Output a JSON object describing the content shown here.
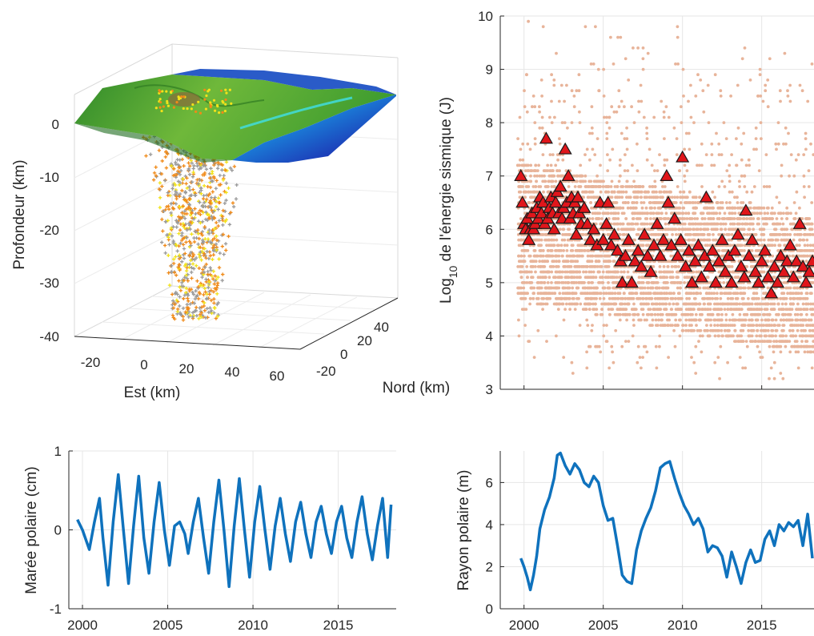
{
  "figure": {
    "panel_3d": {
      "zlabel": "Profondeur (km)",
      "xlabel": "Est (km)",
      "ylabel": "Nord (km)",
      "z_ticks": [
        "0",
        "-10",
        "-20",
        "-30",
        "-40"
      ],
      "x_ticks": [
        "-20",
        "0",
        "20",
        "40",
        "60"
      ],
      "y_ticks": [
        "-20",
        "0",
        "20",
        "40"
      ]
    },
    "colors": {
      "energy_points": "#e8b49a",
      "triangles_fill": "#e0161b",
      "triangles_edge": "#1a1a1a",
      "curve": "#0f72bd",
      "grid": "#e6e6e6",
      "terrain_land": "#4a9a2a",
      "terrain_sea": "#1e3fb0",
      "hypocentre_grey": "#9a9a9a",
      "hypocentre_orange": "#f08a18",
      "hypocentre_yellow": "#f2e21a"
    }
  },
  "chart_data": [
    {
      "type": "scatter",
      "panel": "energie_sismique",
      "ylabel": "Log10 de l'énergie sismique (J)",
      "ylabel_main": "Log",
      "ylabel_sub": "10",
      "ylabel_rest": " de l'énergie sismique (J)",
      "xlim": [
        1998.5,
        2018.3
      ],
      "ylim": [
        3,
        10
      ],
      "yticks": [
        "3",
        "4",
        "5",
        "6",
        "7",
        "8",
        "9",
        "10"
      ],
      "grid": true,
      "series": [
        {
          "marker": "triangle",
          "points": [
            [
              1999.8,
              7.0
            ],
            [
              1999.9,
              6.5
            ],
            [
              2000.0,
              6.1
            ],
            [
              2000.1,
              6.0
            ],
            [
              2000.2,
              6.2
            ],
            [
              2000.3,
              5.8
            ],
            [
              2000.4,
              6.0
            ],
            [
              2000.5,
              6.3
            ],
            [
              2000.6,
              6.0
            ],
            [
              2000.7,
              6.1
            ],
            [
              2000.8,
              6.4
            ],
            [
              2000.9,
              6.2
            ],
            [
              2001.0,
              6.6
            ],
            [
              2001.1,
              6.3
            ],
            [
              2001.2,
              6.5
            ],
            [
              2001.3,
              6.1
            ],
            [
              2001.4,
              7.7
            ],
            [
              2001.5,
              6.2
            ],
            [
              2001.6,
              6.4
            ],
            [
              2001.7,
              6.6
            ],
            [
              2001.8,
              6.3
            ],
            [
              2001.9,
              6.0
            ],
            [
              2002.0,
              6.5
            ],
            [
              2002.1,
              6.7
            ],
            [
              2002.2,
              6.3
            ],
            [
              2002.3,
              6.8
            ],
            [
              2002.4,
              6.2
            ],
            [
              2002.5,
              6.4
            ],
            [
              2002.6,
              7.5
            ],
            [
              2002.7,
              6.5
            ],
            [
              2002.8,
              7.0
            ],
            [
              2002.9,
              6.2
            ],
            [
              2003.0,
              6.6
            ],
            [
              2003.1,
              6.3
            ],
            [
              2003.2,
              6.5
            ],
            [
              2003.3,
              5.9
            ],
            [
              2003.4,
              6.6
            ],
            [
              2003.5,
              6.3
            ],
            [
              2003.6,
              6.1
            ],
            [
              2003.8,
              6.4
            ],
            [
              2004.0,
              6.1
            ],
            [
              2004.2,
              5.8
            ],
            [
              2004.4,
              6.0
            ],
            [
              2004.6,
              5.7
            ],
            [
              2004.8,
              6.5
            ],
            [
              2005.0,
              5.8
            ],
            [
              2005.2,
              6.1
            ],
            [
              2005.3,
              6.5
            ],
            [
              2005.5,
              5.7
            ],
            [
              2005.7,
              5.9
            ],
            [
              2005.9,
              5.6
            ],
            [
              2006.1,
              5.4
            ],
            [
              2006.2,
              5.0
            ],
            [
              2006.4,
              5.5
            ],
            [
              2006.6,
              5.8
            ],
            [
              2006.8,
              5.0
            ],
            [
              2007.0,
              5.4
            ],
            [
              2007.2,
              5.6
            ],
            [
              2007.4,
              5.3
            ],
            [
              2007.6,
              5.9
            ],
            [
              2007.8,
              5.5
            ],
            [
              2008.0,
              5.2
            ],
            [
              2008.2,
              5.7
            ],
            [
              2008.4,
              6.1
            ],
            [
              2008.6,
              5.5
            ],
            [
              2008.8,
              5.8
            ],
            [
              2009.0,
              7.0
            ],
            [
              2009.1,
              6.5
            ],
            [
              2009.3,
              5.7
            ],
            [
              2009.5,
              6.2
            ],
            [
              2009.7,
              5.5
            ],
            [
              2009.9,
              5.8
            ],
            [
              2010.0,
              7.35
            ],
            [
              2010.2,
              5.3
            ],
            [
              2010.4,
              5.6
            ],
            [
              2010.6,
              5.0
            ],
            [
              2010.8,
              5.4
            ],
            [
              2011.0,
              5.7
            ],
            [
              2011.2,
              5.1
            ],
            [
              2011.4,
              5.5
            ],
            [
              2011.5,
              6.6
            ],
            [
              2011.7,
              5.3
            ],
            [
              2011.9,
              5.6
            ],
            [
              2012.1,
              5.0
            ],
            [
              2012.3,
              5.4
            ],
            [
              2012.5,
              5.8
            ],
            [
              2012.7,
              5.2
            ],
            [
              2012.9,
              5.5
            ],
            [
              2013.1,
              5.0
            ],
            [
              2013.3,
              5.6
            ],
            [
              2013.5,
              5.9
            ],
            [
              2013.7,
              5.3
            ],
            [
              2013.9,
              5.1
            ],
            [
              2014.0,
              6.35
            ],
            [
              2014.2,
              5.5
            ],
            [
              2014.4,
              5.8
            ],
            [
              2014.6,
              5.2
            ],
            [
              2014.8,
              5.0
            ],
            [
              2015.0,
              5.4
            ],
            [
              2015.2,
              5.6
            ],
            [
              2015.4,
              5.1
            ],
            [
              2015.6,
              4.8
            ],
            [
              2015.8,
              5.3
            ],
            [
              2016.0,
              5.0
            ],
            [
              2016.2,
              5.5
            ],
            [
              2016.4,
              5.2
            ],
            [
              2016.6,
              5.4
            ],
            [
              2016.8,
              5.7
            ],
            [
              2017.0,
              5.1
            ],
            [
              2017.2,
              5.4
            ],
            [
              2017.4,
              6.1
            ],
            [
              2017.6,
              5.3
            ],
            [
              2017.8,
              5.0
            ],
            [
              2018.0,
              5.2
            ],
            [
              2018.2,
              5.4
            ]
          ]
        }
      ]
    },
    {
      "type": "line",
      "panel": "maree_polaire",
      "ylabel": "Marée polaire (cm)",
      "xlim": [
        1999.2,
        2018.4
      ],
      "ylim": [
        -1,
        1
      ],
      "xticks": [
        "2000",
        "2005",
        "2010",
        "2015"
      ],
      "yticks": [
        "-1",
        "0",
        "1"
      ],
      "grid": true,
      "x": [
        1999.7,
        2000.0,
        2000.4,
        2000.7,
        2001.0,
        2001.2,
        2001.5,
        2001.8,
        2002.1,
        2002.4,
        2002.7,
        2003.0,
        2003.3,
        2003.6,
        2003.9,
        2004.2,
        2004.5,
        2004.8,
        2005.1,
        2005.4,
        2005.7,
        2006.0,
        2006.2,
        2006.5,
        2006.8,
        2007.1,
        2007.4,
        2007.7,
        2008.0,
        2008.3,
        2008.6,
        2008.9,
        2009.2,
        2009.5,
        2009.8,
        2010.1,
        2010.4,
        2010.7,
        2011.0,
        2011.3,
        2011.6,
        2011.9,
        2012.2,
        2012.5,
        2012.8,
        2013.1,
        2013.4,
        2013.7,
        2014.0,
        2014.3,
        2014.6,
        2014.9,
        2015.2,
        2015.5,
        2015.8,
        2016.1,
        2016.4,
        2016.7,
        2017.0,
        2017.3,
        2017.6,
        2017.9,
        2018.1
      ],
      "y": [
        0.13,
        0.0,
        -0.25,
        0.1,
        0.4,
        -0.1,
        -0.7,
        0.1,
        0.7,
        0.0,
        -0.68,
        0.05,
        0.68,
        -0.1,
        -0.55,
        0.1,
        0.6,
        0.0,
        -0.45,
        0.05,
        0.1,
        -0.05,
        -0.3,
        0.1,
        0.4,
        -0.1,
        -0.55,
        0.1,
        0.63,
        0.0,
        -0.72,
        0.05,
        0.65,
        0.0,
        -0.6,
        0.1,
        0.55,
        0.0,
        -0.5,
        0.05,
        0.4,
        -0.05,
        -0.4,
        0.1,
        0.35,
        -0.05,
        -0.35,
        0.1,
        0.3,
        -0.05,
        -0.3,
        0.1,
        0.3,
        -0.1,
        -0.35,
        0.1,
        0.42,
        -0.05,
        -0.38,
        0.05,
        0.4,
        -0.35,
        0.32
      ]
    },
    {
      "type": "line",
      "panel": "rayon_polaire",
      "ylabel": "Rayon polaire (m)",
      "xlim": [
        1998.5,
        2018.3
      ],
      "ylim": [
        0,
        7.5
      ],
      "xticks": [
        "2000",
        "2005",
        "2010",
        "2015"
      ],
      "yticks": [
        "0",
        "2",
        "4",
        "6"
      ],
      "grid": true,
      "x": [
        1999.8,
        2000.0,
        2000.2,
        2000.4,
        2000.6,
        2000.8,
        2001.0,
        2001.3,
        2001.6,
        2001.9,
        2002.1,
        2002.3,
        2002.6,
        2002.9,
        2003.2,
        2003.5,
        2003.8,
        2004.1,
        2004.4,
        2004.7,
        2005.0,
        2005.3,
        2005.6,
        2005.9,
        2006.2,
        2006.5,
        2006.8,
        2007.1,
        2007.4,
        2007.7,
        2008.0,
        2008.3,
        2008.6,
        2008.9,
        2009.2,
        2009.5,
        2009.8,
        2010.1,
        2010.4,
        2010.7,
        2011.0,
        2011.3,
        2011.6,
        2011.9,
        2012.2,
        2012.5,
        2012.8,
        2013.1,
        2013.4,
        2013.7,
        2014.0,
        2014.3,
        2014.6,
        2014.9,
        2015.2,
        2015.5,
        2015.8,
        2016.1,
        2016.4,
        2016.7,
        2017.0,
        2017.3,
        2017.6,
        2017.9,
        2018.2
      ],
      "y": [
        2.4,
        2.0,
        1.5,
        0.9,
        1.6,
        2.5,
        3.8,
        4.7,
        5.3,
        6.2,
        7.3,
        7.4,
        6.8,
        6.4,
        6.9,
        6.6,
        6.0,
        5.8,
        6.3,
        6.0,
        4.9,
        4.2,
        4.3,
        3.0,
        1.6,
        1.3,
        1.2,
        2.8,
        3.7,
        4.3,
        4.8,
        5.6,
        6.7,
        6.9,
        7.0,
        6.2,
        5.5,
        4.9,
        4.5,
        4.0,
        4.3,
        3.8,
        2.7,
        3.0,
        2.9,
        2.5,
        1.5,
        2.7,
        2.0,
        1.2,
        2.2,
        2.8,
        2.2,
        2.3,
        3.3,
        3.7,
        3.0,
        4.0,
        3.7,
        4.1,
        3.9,
        4.2,
        3.0,
        4.5,
        2.4
      ]
    }
  ]
}
